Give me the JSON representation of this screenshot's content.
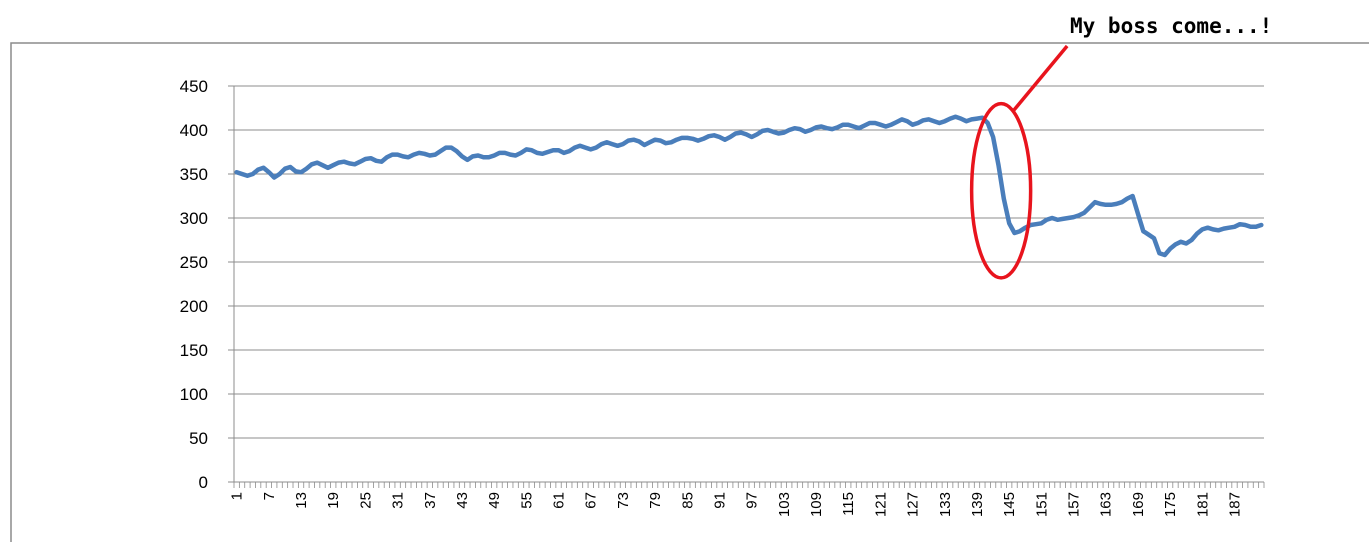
{
  "chart_data": {
    "type": "line",
    "title": "",
    "xlabel": "",
    "ylabel": "",
    "ylim": [
      0,
      450
    ],
    "yticks": [
      0,
      50,
      100,
      150,
      200,
      250,
      300,
      350,
      400,
      450
    ],
    "x_range": [
      1,
      192
    ],
    "x_tick_labels": [
      "1",
      "7",
      "13",
      "19",
      "25",
      "31",
      "37",
      "43",
      "49",
      "55",
      "61",
      "67",
      "73",
      "79",
      "85",
      "91",
      "97",
      "103",
      "109",
      "115",
      "121",
      "127",
      "133",
      "139",
      "145",
      "151",
      "157",
      "163",
      "169",
      "175",
      "181",
      "187"
    ],
    "grid": "horizontal",
    "legend": "none",
    "series": [
      {
        "color": "#4a7ebb",
        "points": [
          [
            1,
            352
          ],
          [
            2,
            350
          ],
          [
            3,
            348
          ],
          [
            4,
            350
          ],
          [
            5,
            355
          ],
          [
            6,
            357
          ],
          [
            7,
            352
          ],
          [
            8,
            346
          ],
          [
            9,
            350
          ],
          [
            10,
            356
          ],
          [
            11,
            358
          ],
          [
            12,
            353
          ],
          [
            13,
            352
          ],
          [
            14,
            356
          ],
          [
            15,
            361
          ],
          [
            16,
            363
          ],
          [
            17,
            360
          ],
          [
            18,
            357
          ],
          [
            19,
            360
          ],
          [
            20,
            363
          ],
          [
            21,
            364
          ],
          [
            22,
            362
          ],
          [
            23,
            361
          ],
          [
            24,
            364
          ],
          [
            25,
            367
          ],
          [
            26,
            368
          ],
          [
            27,
            365
          ],
          [
            28,
            364
          ],
          [
            29,
            369
          ],
          [
            30,
            372
          ],
          [
            31,
            372
          ],
          [
            32,
            370
          ],
          [
            33,
            369
          ],
          [
            34,
            372
          ],
          [
            35,
            374
          ],
          [
            36,
            373
          ],
          [
            37,
            371
          ],
          [
            38,
            372
          ],
          [
            39,
            376
          ],
          [
            40,
            380
          ],
          [
            41,
            380
          ],
          [
            42,
            376
          ],
          [
            43,
            370
          ],
          [
            44,
            366
          ],
          [
            45,
            370
          ],
          [
            46,
            371
          ],
          [
            47,
            369
          ],
          [
            48,
            369
          ],
          [
            49,
            371
          ],
          [
            50,
            374
          ],
          [
            51,
            374
          ],
          [
            52,
            372
          ],
          [
            53,
            371
          ],
          [
            54,
            374
          ],
          [
            55,
            378
          ],
          [
            56,
            377
          ],
          [
            57,
            374
          ],
          [
            58,
            373
          ],
          [
            59,
            375
          ],
          [
            60,
            377
          ],
          [
            61,
            377
          ],
          [
            62,
            374
          ],
          [
            63,
            376
          ],
          [
            64,
            380
          ],
          [
            65,
            382
          ],
          [
            66,
            380
          ],
          [
            67,
            378
          ],
          [
            68,
            380
          ],
          [
            69,
            384
          ],
          [
            70,
            386
          ],
          [
            71,
            384
          ],
          [
            72,
            382
          ],
          [
            73,
            384
          ],
          [
            74,
            388
          ],
          [
            75,
            389
          ],
          [
            76,
            387
          ],
          [
            77,
            383
          ],
          [
            78,
            386
          ],
          [
            79,
            389
          ],
          [
            80,
            388
          ],
          [
            81,
            385
          ],
          [
            82,
            386
          ],
          [
            83,
            389
          ],
          [
            84,
            391
          ],
          [
            85,
            391
          ],
          [
            86,
            390
          ],
          [
            87,
            388
          ],
          [
            88,
            390
          ],
          [
            89,
            393
          ],
          [
            90,
            394
          ],
          [
            91,
            392
          ],
          [
            92,
            389
          ],
          [
            93,
            392
          ],
          [
            94,
            396
          ],
          [
            95,
            397
          ],
          [
            96,
            395
          ],
          [
            97,
            392
          ],
          [
            98,
            395
          ],
          [
            99,
            399
          ],
          [
            100,
            400
          ],
          [
            101,
            398
          ],
          [
            102,
            396
          ],
          [
            103,
            397
          ],
          [
            104,
            400
          ],
          [
            105,
            402
          ],
          [
            106,
            401
          ],
          [
            107,
            398
          ],
          [
            108,
            400
          ],
          [
            109,
            403
          ],
          [
            110,
            404
          ],
          [
            111,
            402
          ],
          [
            112,
            401
          ],
          [
            113,
            403
          ],
          [
            114,
            406
          ],
          [
            115,
            406
          ],
          [
            116,
            404
          ],
          [
            117,
            402
          ],
          [
            118,
            405
          ],
          [
            119,
            408
          ],
          [
            120,
            408
          ],
          [
            121,
            406
          ],
          [
            122,
            404
          ],
          [
            123,
            406
          ],
          [
            124,
            409
          ],
          [
            125,
            412
          ],
          [
            126,
            410
          ],
          [
            127,
            406
          ],
          [
            128,
            408
          ],
          [
            129,
            411
          ],
          [
            130,
            412
          ],
          [
            131,
            410
          ],
          [
            132,
            408
          ],
          [
            133,
            410
          ],
          [
            134,
            413
          ],
          [
            135,
            415
          ],
          [
            136,
            413
          ],
          [
            137,
            410
          ],
          [
            138,
            412
          ],
          [
            139,
            413
          ],
          [
            140,
            414
          ],
          [
            141,
            408
          ],
          [
            142,
            392
          ],
          [
            143,
            360
          ],
          [
            144,
            322
          ],
          [
            145,
            294
          ],
          [
            146,
            283
          ],
          [
            147,
            285
          ],
          [
            148,
            289
          ],
          [
            149,
            292
          ],
          [
            150,
            293
          ],
          [
            151,
            294
          ],
          [
            152,
            298
          ],
          [
            153,
            300
          ],
          [
            154,
            298
          ],
          [
            155,
            299
          ],
          [
            156,
            300
          ],
          [
            157,
            301
          ],
          [
            158,
            303
          ],
          [
            159,
            306
          ],
          [
            160,
            312
          ],
          [
            161,
            318
          ],
          [
            162,
            316
          ],
          [
            163,
            315
          ],
          [
            164,
            315
          ],
          [
            165,
            316
          ],
          [
            166,
            318
          ],
          [
            167,
            322
          ],
          [
            168,
            325
          ],
          [
            169,
            305
          ],
          [
            170,
            285
          ],
          [
            171,
            281
          ],
          [
            172,
            277
          ],
          [
            173,
            260
          ],
          [
            174,
            258
          ],
          [
            175,
            265
          ],
          [
            176,
            270
          ],
          [
            177,
            273
          ],
          [
            178,
            271
          ],
          [
            179,
            275
          ],
          [
            180,
            282
          ],
          [
            181,
            287
          ],
          [
            182,
            289
          ],
          [
            183,
            287
          ],
          [
            184,
            286
          ],
          [
            185,
            288
          ],
          [
            186,
            289
          ],
          [
            187,
            290
          ],
          [
            188,
            293
          ],
          [
            189,
            292
          ],
          [
            190,
            290
          ],
          [
            191,
            290
          ],
          [
            192,
            292
          ]
        ]
      }
    ],
    "annotations": [
      {
        "text": "My boss come...!",
        "type": "ellipse-callout",
        "target_x_range": [
          138,
          149
        ],
        "target_y_range": [
          232,
          430
        ]
      }
    ]
  }
}
